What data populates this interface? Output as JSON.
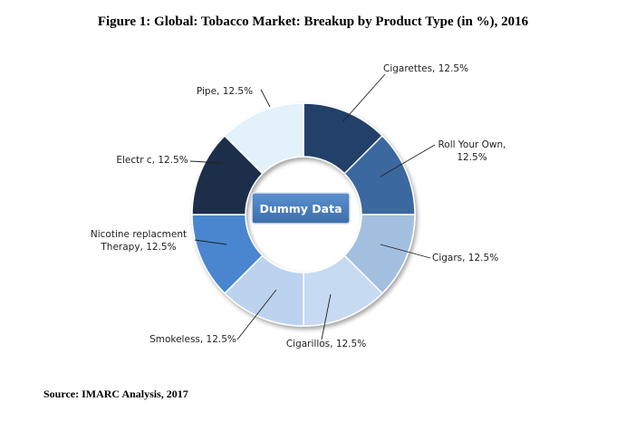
{
  "title": "Figure 1: Global: Tobacco Market: Breakup by Product Type (in %), 2016",
  "source": "Source: IMARC Analysis, 2017",
  "chart_data": {
    "type": "pie",
    "title": "Figure 1: Global: Tobacco Market: Breakup by Product Type (in %), 2016",
    "center_label": "Dummy Data",
    "slices": [
      {
        "label": "Cigarettes",
        "value": 12.5,
        "color": "#243f67",
        "text": [
          "Cigarettes, 12.5%"
        ]
      },
      {
        "label": "Roll Your Own",
        "value": 12.5,
        "color": "#3a679e",
        "text": [
          "Roll Your Own,",
          "12.5%"
        ]
      },
      {
        "label": "Cigars",
        "value": 12.5,
        "color": "#a3bfe0",
        "text": [
          "Cigars, 12.5%"
        ]
      },
      {
        "label": "Cigarillos",
        "value": 12.5,
        "color": "#c6daf2",
        "text": [
          "Cigarillos, 12.5%"
        ]
      },
      {
        "label": "Smokeless",
        "value": 12.5,
        "color": "#bcd3ef",
        "text": [
          "Smokeless, 12.5%"
        ]
      },
      {
        "label": "Nicotine replacment Therapy",
        "value": 12.5,
        "color": "#4a86cf",
        "text": [
          "Nicotine replacment",
          "Therapy, 12.5%"
        ]
      },
      {
        "label": "Electric",
        "value": 12.5,
        "color": "#1b2d4a",
        "text": [
          "Electr c, 12.5%"
        ]
      },
      {
        "label": "Pipe",
        "value": 12.5,
        "color": "#e3f2fa",
        "text": [
          "Pipe, 12.5%"
        ]
      }
    ]
  }
}
